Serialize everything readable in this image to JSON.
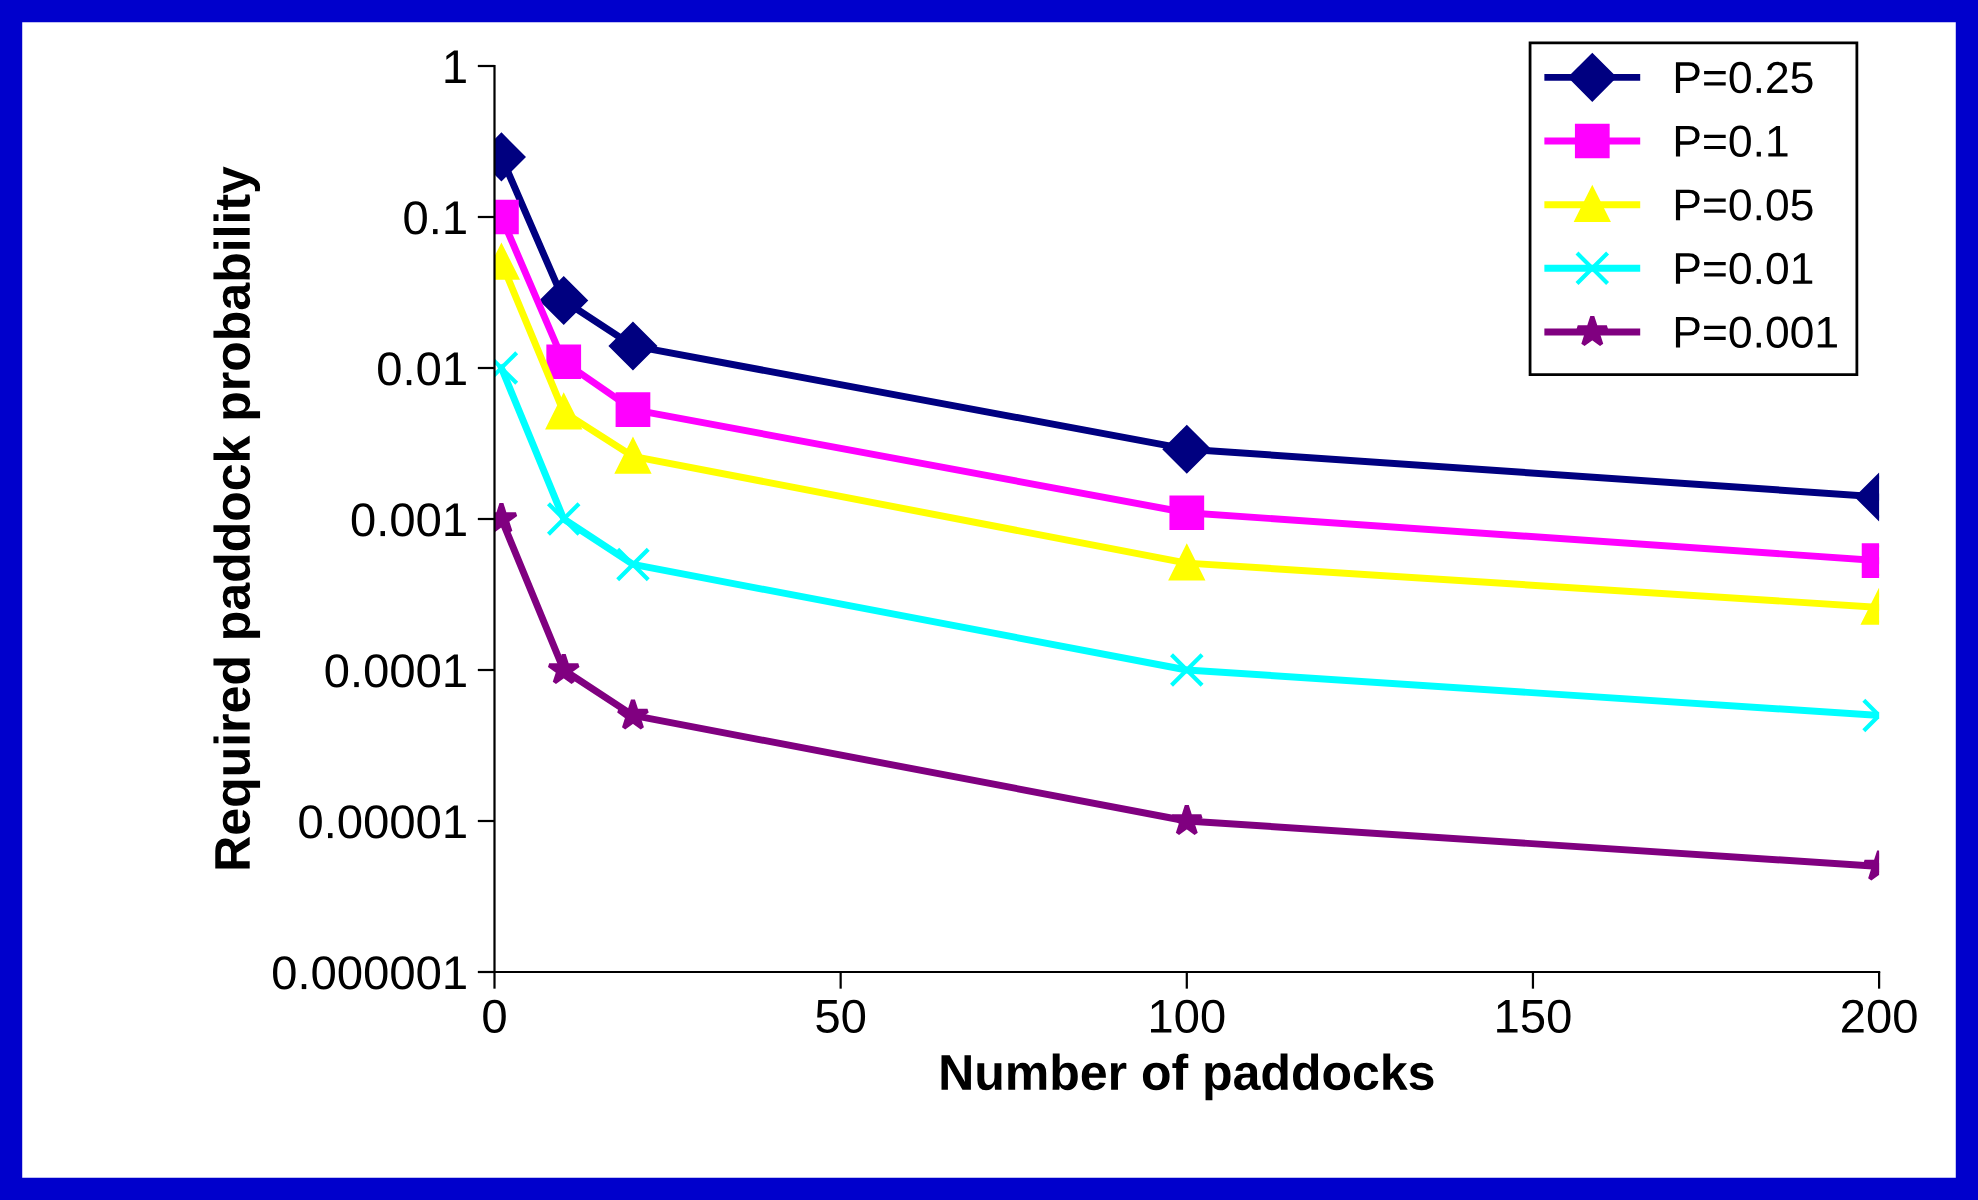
{
  "chart_data": {
    "type": "line",
    "xlabel": "Number of paddocks",
    "ylabel": "Required paddock probability",
    "log": "y",
    "x": [
      1,
      10,
      20,
      100,
      200
    ],
    "series": [
      {
        "name": "P=0.25",
        "color": "#000080",
        "marker": "diamond",
        "values": [
          0.25,
          0.028,
          0.014,
          0.0029,
          0.0014
        ]
      },
      {
        "name": "P=0.1",
        "color": "#ff00ff",
        "marker": "square",
        "values": [
          0.1,
          0.011,
          0.0053,
          0.0011,
          0.00053
        ]
      },
      {
        "name": "P=0.05",
        "color": "#ffff00",
        "marker": "triangle",
        "values": [
          0.05,
          0.0051,
          0.0026,
          0.00051,
          0.00026
        ]
      },
      {
        "name": "P=0.01",
        "color": "#00ffff",
        "marker": "cross",
        "values": [
          0.01,
          0.001,
          0.0005,
          0.0001,
          5e-05
        ]
      },
      {
        "name": "P=0.001",
        "color": "#800080",
        "marker": "star",
        "values": [
          0.001,
          0.0001,
          5e-05,
          1e-05,
          5e-06
        ]
      }
    ],
    "xlim": [
      0,
      200
    ],
    "xticks": [
      0,
      50,
      100,
      150,
      200
    ],
    "ylim": [
      1e-06,
      1
    ],
    "yticks": [
      {
        "value": 1e-06,
        "label": "0.000001"
      },
      {
        "value": 1e-05,
        "label": "0.00001"
      },
      {
        "value": 0.0001,
        "label": "0.0001"
      },
      {
        "value": 0.001,
        "label": "0.001"
      },
      {
        "value": 0.01,
        "label": "0.01"
      },
      {
        "value": 0.1,
        "label": "0.1"
      },
      {
        "value": 1,
        "label": "1"
      }
    ],
    "grid": false,
    "legend": "top right",
    "line_style": "solid"
  }
}
